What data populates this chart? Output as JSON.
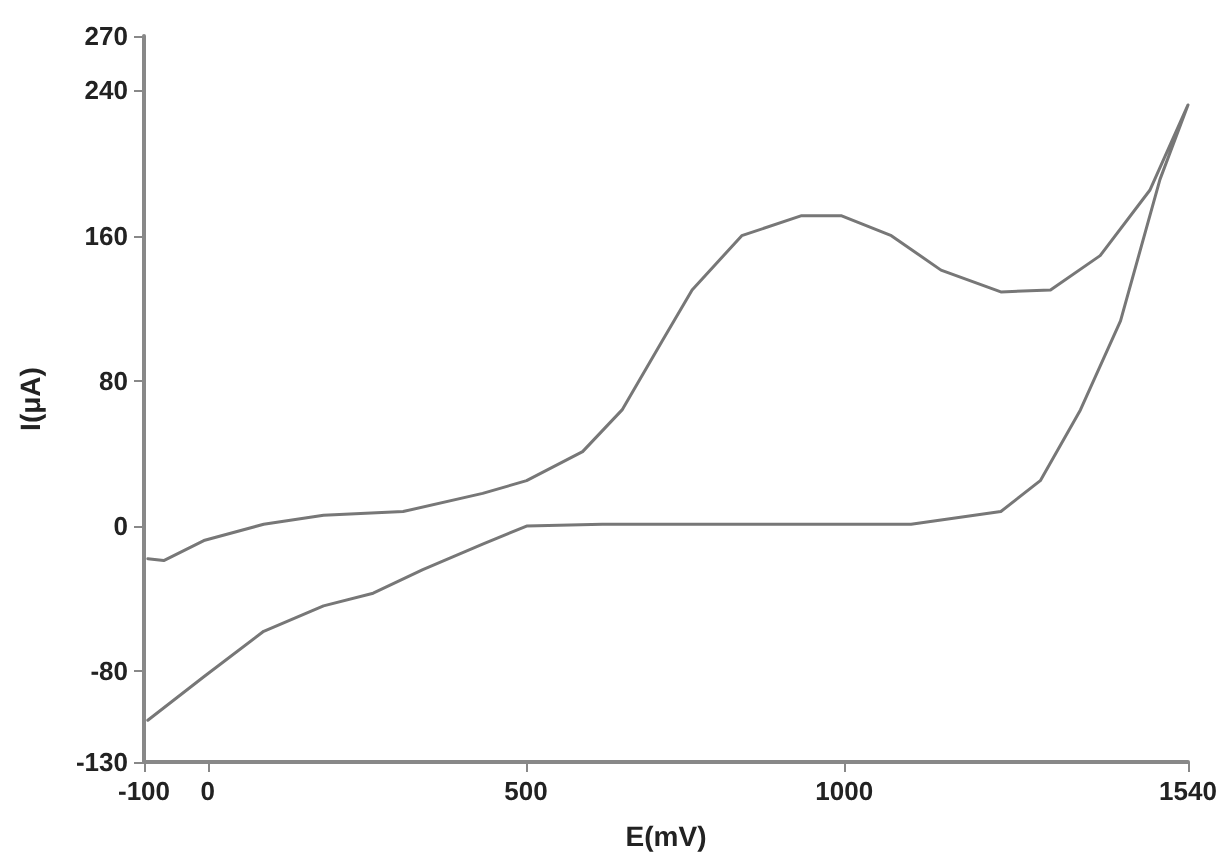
{
  "chart_data": {
    "type": "line",
    "xlabel": "E(mV)",
    "ylabel": "I(μA)",
    "x": [
      -94,
      -69,
      -6,
      88,
      182,
      307,
      432,
      501,
      589,
      651,
      714,
      761,
      839,
      933,
      995,
      1074,
      1152,
      1246,
      1324,
      1402,
      1480,
      1540,
      1496,
      1434,
      1371,
      1308,
      1246,
      1105,
      933,
      620,
      501,
      432,
      338,
      260,
      182,
      88,
      -6,
      -94
    ],
    "series": [
      {
        "color": "#777777",
        "values": [
          -18,
          -19,
          -8,
          1,
          6,
          8,
          18,
          25,
          41,
          64,
          102,
          130,
          160,
          171,
          171,
          160,
          141,
          129,
          130,
          149,
          185,
          232,
          191,
          113,
          64,
          25,
          8,
          1,
          1,
          1,
          0,
          -10,
          -24,
          -37,
          -44,
          -58,
          -83,
          -107
        ]
      }
    ],
    "xlim": [
      -100,
      1540
    ],
    "xticks": [
      -100,
      0,
      500,
      1000,
      1540
    ],
    "ylim": [
      -130,
      270
    ],
    "yticks": [
      -130,
      -80,
      0,
      80,
      160,
      240,
      270
    ],
    "grid": false,
    "marker": "none",
    "line_style": "solid"
  }
}
